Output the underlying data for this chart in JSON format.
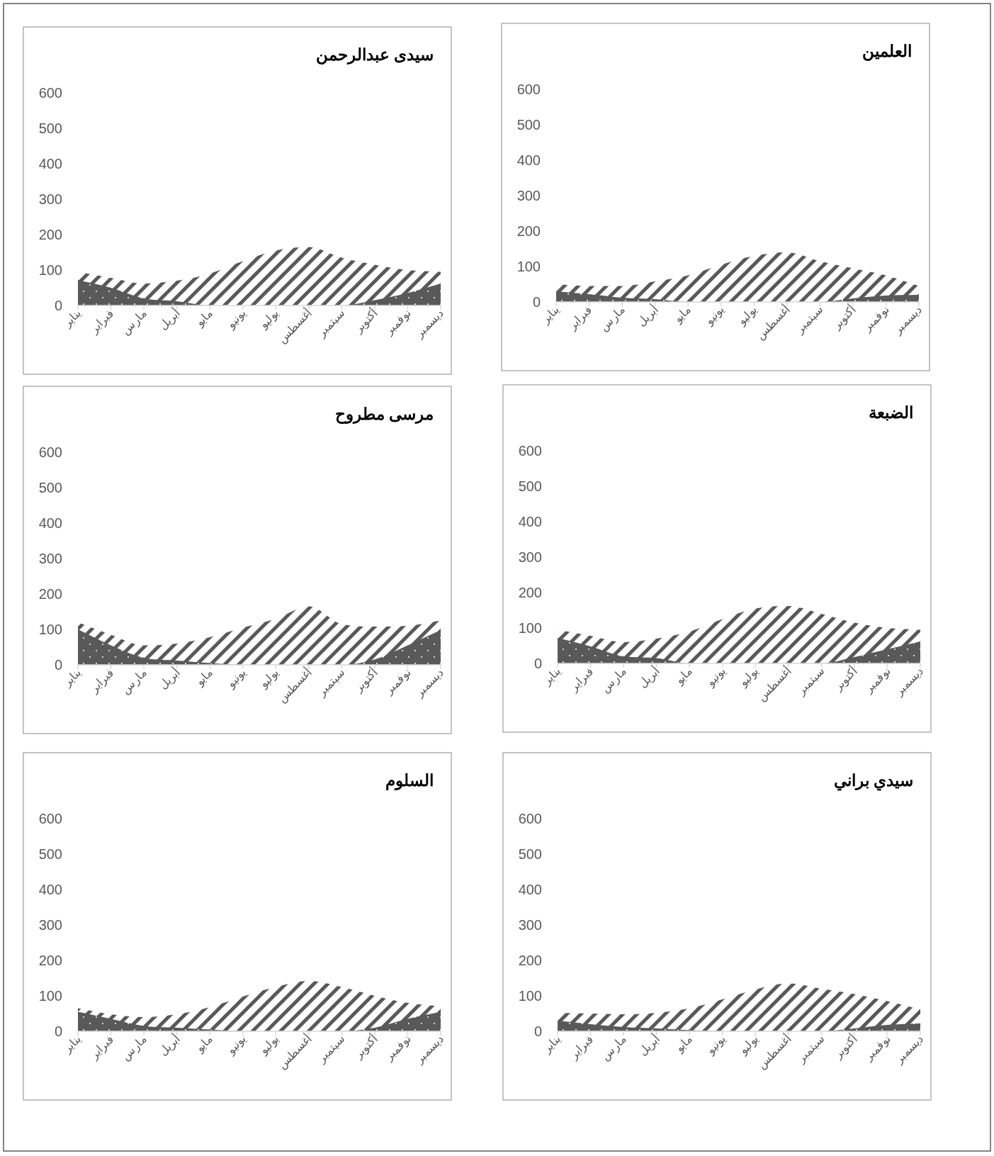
{
  "chart_data": [
    {
      "type": "area",
      "title": "سيدى عبدالرحمن",
      "categories": [
        "يناير",
        "فبراير",
        "مارس",
        "أبريل",
        "مايو",
        "يونيو",
        "يوليو",
        "أغسطس",
        "سبتمبر",
        "أكتوبر",
        "نوفمبر",
        "ديسمبر"
      ],
      "ylim": [
        0,
        600
      ],
      "yticks": [
        0,
        100,
        200,
        300,
        400,
        500,
        600
      ],
      "grid": false,
      "series": [
        {
          "color": "#595959",
          "values": [
            95,
            78,
            62,
            70,
            90,
            125,
            155,
            165,
            135,
            115,
            100,
            95
          ]
        },
        {
          "color": "#595959",
          "values": [
            72,
            50,
            20,
            12,
            0,
            0,
            0,
            0,
            0,
            15,
            35,
            62
          ]
        }
      ]
    },
    {
      "type": "area",
      "title": "العلمين",
      "categories": [
        "يناير",
        "فبراير",
        "مارس",
        "أبريل",
        "مايو",
        "يونيو",
        "يوليو",
        "أغسطس",
        "سبتمبر",
        "أكتوبر",
        "نوفمبر",
        "ديسمبر"
      ],
      "ylim": [
        0,
        600
      ],
      "yticks": [
        0,
        100,
        200,
        300,
        400,
        500,
        600
      ],
      "grid": false,
      "series": [
        {
          "color": "#595959",
          "values": [
            50,
            45,
            45,
            58,
            75,
            105,
            130,
            140,
            115,
            95,
            75,
            45
          ]
        },
        {
          "color": "#595959",
          "values": [
            30,
            22,
            12,
            8,
            0,
            0,
            0,
            0,
            0,
            10,
            18,
            20
          ]
        }
      ]
    },
    {
      "type": "area",
      "title": "مرسى مطروح",
      "categories": [
        "يناير",
        "فبراير",
        "مارس",
        "أبريل",
        "مايو",
        "يونيو",
        "يوليو",
        "أغسطس",
        "سبتمبر",
        "أكتوبر",
        "نوفمبر",
        "ديسمبر"
      ],
      "ylim": [
        0,
        600
      ],
      "yticks": [
        0,
        100,
        200,
        300,
        400,
        500,
        600
      ],
      "grid": false,
      "series": [
        {
          "color": "#595959",
          "values": [
            120,
            85,
            55,
            60,
            78,
            105,
            130,
            165,
            115,
            108,
            110,
            125
          ]
        },
        {
          "color": "#595959",
          "values": [
            100,
            55,
            20,
            12,
            5,
            0,
            0,
            0,
            0,
            15,
            55,
            98
          ]
        }
      ]
    },
    {
      "type": "area",
      "title": "الضبعة",
      "categories": [
        "يناير",
        "فبراير",
        "مارس",
        "أبريل",
        "مايو",
        "يونيو",
        "يوليو",
        "أغسطس",
        "سبتمبر",
        "أكتوبر",
        "نوفمبر",
        "ديسمبر"
      ],
      "ylim": [
        0,
        600
      ],
      "yticks": [
        0,
        100,
        200,
        300,
        400,
        500,
        600
      ],
      "grid": false,
      "series": [
        {
          "color": "#595959",
          "values": [
            95,
            78,
            60,
            70,
            90,
            125,
            155,
            162,
            140,
            115,
            100,
            95
          ]
        },
        {
          "color": "#595959",
          "values": [
            72,
            48,
            20,
            15,
            0,
            0,
            0,
            0,
            0,
            18,
            40,
            62
          ]
        }
      ]
    },
    {
      "type": "area",
      "title": "السلوم",
      "categories": [
        "يناير",
        "فبراير",
        "مارس",
        "أبريل",
        "مايو",
        "يونيو",
        "يوليو",
        "أغسطس",
        "سبتمبر",
        "أكتوبر",
        "نوفمبر",
        "ديسمبر"
      ],
      "ylim": [
        0,
        600
      ],
      "yticks": [
        0,
        100,
        200,
        300,
        400,
        500,
        600
      ],
      "grid": false,
      "series": [
        {
          "color": "#595959",
          "values": [
            65,
            48,
            40,
            48,
            68,
            98,
            125,
            142,
            125,
            100,
            80,
            70
          ]
        },
        {
          "color": "#595959",
          "values": [
            55,
            35,
            15,
            10,
            5,
            0,
            0,
            0,
            0,
            10,
            35,
            55
          ]
        }
      ]
    },
    {
      "type": "area",
      "title": "سيدي براني",
      "categories": [
        "يناير",
        "فبراير",
        "مارس",
        "أبريل",
        "مايو",
        "يونيو",
        "يوليو",
        "أغسطس",
        "سبتمبر",
        "أكتوبر",
        "نوفمبر",
        "ديسمبر"
      ],
      "ylim": [
        0,
        600
      ],
      "yticks": [
        0,
        100,
        200,
        300,
        400,
        500,
        600
      ],
      "grid": false,
      "series": [
        {
          "color": "#595959",
          "values": [
            52,
            50,
            48,
            52,
            65,
            90,
            118,
            135,
            120,
            105,
            85,
            62
          ]
        },
        {
          "color": "#595959",
          "values": [
            30,
            20,
            12,
            8,
            3,
            0,
            0,
            0,
            0,
            8,
            18,
            22
          ]
        }
      ]
    }
  ]
}
